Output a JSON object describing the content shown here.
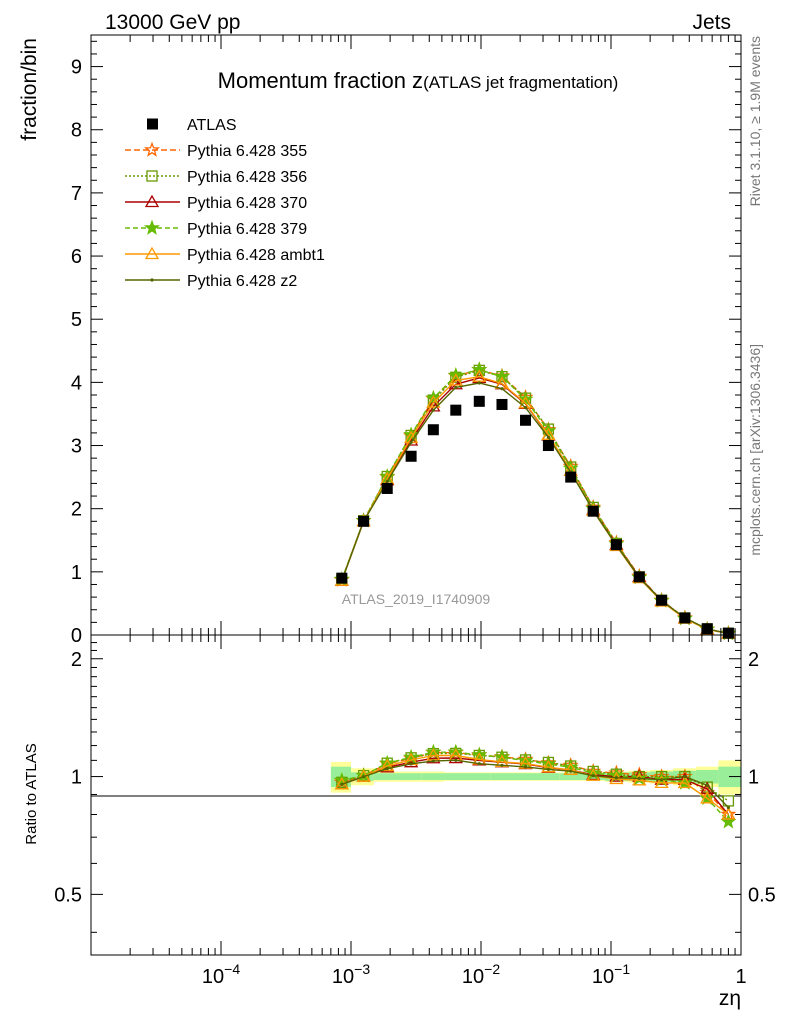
{
  "header": {
    "left": "13000 GeV pp",
    "right": "Jets"
  },
  "side": {
    "rivet": "Rivet 3.1.10, ≥ 1.9M events",
    "mcplots": "mcplots.cern.ch [arXiv:1306.3436]"
  },
  "chart_data": {
    "type": "line",
    "title_main": "Momentum fraction z",
    "title_sub": "(ATLAS jet fragmentation)",
    "watermark": "ATLAS_2019_I1740909",
    "ylabel": "fraction/bin",
    "ratio_ylabel": "Ratio to ATLAS",
    "xlabel": "zη",
    "x_scale": "log",
    "xlim": [
      1e-05,
      1
    ],
    "ylim": [
      0,
      9.5
    ],
    "ratio_ylim": [
      0.35,
      2.3
    ],
    "x_ticks": [
      {
        "v": 0.0001,
        "base": "10",
        "exp": "−4"
      },
      {
        "v": 0.001,
        "base": "10",
        "exp": "−3"
      },
      {
        "v": 0.01,
        "base": "10",
        "exp": "−2"
      },
      {
        "v": 0.1,
        "base": "10",
        "exp": "−1"
      },
      {
        "v": 1,
        "base": "1",
        "exp": ""
      }
    ],
    "y_ticks": [
      "0",
      "1",
      "2",
      "3",
      "4",
      "5",
      "6",
      "7",
      "8",
      "9"
    ],
    "ratio_ticks": [
      "0.5",
      "1",
      "2"
    ],
    "legend_placement": "top-left",
    "x": [
      0.00085,
      0.00125,
      0.0019,
      0.0029,
      0.0043,
      0.0064,
      0.0097,
      0.0145,
      0.022,
      0.033,
      0.049,
      0.073,
      0.11,
      0.165,
      0.245,
      0.37,
      0.55,
      0.8
    ],
    "data": {
      "name": "ATLAS",
      "values": [
        0.9,
        1.8,
        2.32,
        2.83,
        3.25,
        3.56,
        3.7,
        3.65,
        3.4,
        3.0,
        2.5,
        1.96,
        1.43,
        0.92,
        0.55,
        0.27,
        0.1,
        0.03
      ]
    },
    "band": {
      "x_edges": [
        0.0007,
        0.001,
        0.0015,
        0.0023,
        0.0035,
        0.0052,
        0.0078,
        0.0118,
        0.0178,
        0.027,
        0.04,
        0.06,
        0.09,
        0.135,
        0.2,
        0.3,
        0.45,
        0.67,
        1.0
      ],
      "stat": [
        0.06,
        0.025,
        0.02,
        0.02,
        0.02,
        0.02,
        0.02,
        0.02,
        0.02,
        0.02,
        0.02,
        0.02,
        0.025,
        0.025,
        0.03,
        0.035,
        0.04,
        0.06
      ],
      "total": [
        0.09,
        0.05,
        0.03,
        0.03,
        0.03,
        0.025,
        0.025,
        0.025,
        0.025,
        0.025,
        0.025,
        0.025,
        0.03,
        0.035,
        0.04,
        0.05,
        0.06,
        0.1
      ]
    },
    "series": [
      {
        "name": "Pythia 6.428 355",
        "color": "#ff6600",
        "dash": "6,3",
        "marker": "star_open",
        "values": [
          0.87,
          1.81,
          2.5,
          3.15,
          3.74,
          4.1,
          4.2,
          4.1,
          3.76,
          3.25,
          2.67,
          2.02,
          1.46,
          0.93,
          0.55,
          0.27,
          0.091,
          0.024
        ]
      },
      {
        "name": "Pythia 6.428 356",
        "color": "#669900",
        "dash": "2,2",
        "marker": "square_open",
        "values": [
          0.87,
          1.81,
          2.51,
          3.16,
          3.72,
          4.08,
          4.19,
          4.09,
          3.75,
          3.26,
          2.66,
          2.02,
          1.45,
          0.92,
          0.55,
          0.27,
          0.094,
          0.026
        ]
      },
      {
        "name": "Pythia 6.428 370",
        "color": "#aa0000",
        "dash": "",
        "marker": "triangle_open",
        "values": [
          0.86,
          1.8,
          2.45,
          3.08,
          3.62,
          3.97,
          4.07,
          3.97,
          3.66,
          3.16,
          2.6,
          1.98,
          1.43,
          0.92,
          0.54,
          0.265,
          0.093,
          0.024
        ]
      },
      {
        "name": "Pythia 6.428 379",
        "color": "#66bb00",
        "dash": "5,3",
        "marker": "star_filled",
        "values": [
          0.88,
          1.81,
          2.51,
          3.17,
          3.75,
          4.11,
          4.2,
          4.09,
          3.73,
          3.23,
          2.64,
          2.0,
          1.44,
          0.91,
          0.54,
          0.26,
          0.088,
          0.023
        ]
      },
      {
        "name": "Pythia 6.428 ambt1",
        "color": "#ff9900",
        "dash": "",
        "marker": "triangle_open",
        "values": [
          0.86,
          1.8,
          2.47,
          3.12,
          3.68,
          4.03,
          4.09,
          3.98,
          3.67,
          3.17,
          2.6,
          1.97,
          1.41,
          0.9,
          0.53,
          0.26,
          0.088,
          0.024
        ]
      },
      {
        "name": "Pythia 6.428 z2",
        "color": "#556600",
        "dash": "",
        "marker": "dot",
        "values": [
          0.86,
          1.8,
          2.43,
          3.05,
          3.56,
          3.92,
          3.99,
          3.9,
          3.6,
          3.13,
          2.58,
          1.97,
          1.42,
          0.91,
          0.54,
          0.27,
          0.095,
          0.025
        ]
      }
    ]
  }
}
